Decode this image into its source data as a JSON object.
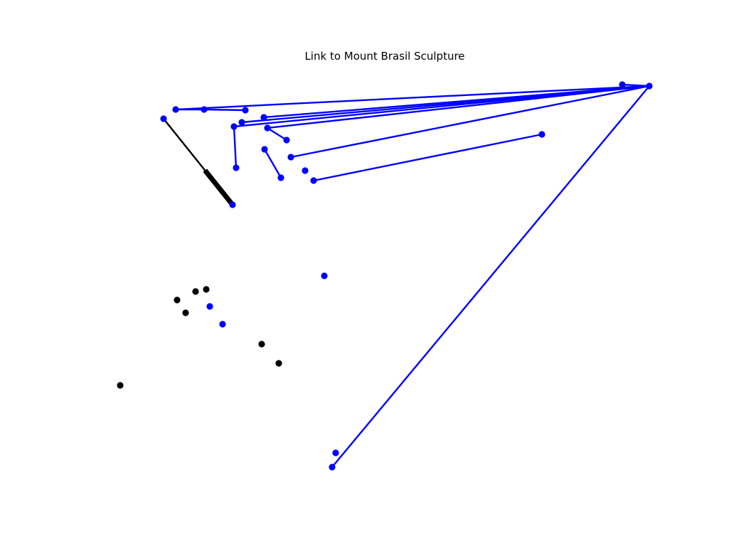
{
  "title": "Link to Mount Brasil Sculpture",
  "colors": {
    "primary": "#0000ff",
    "secondary": "#000000",
    "background": "#ffffff"
  },
  "nodes": [
    {
      "id": "n1",
      "group": "blue"
    },
    {
      "id": "n2",
      "group": "blue"
    },
    {
      "id": "n3",
      "group": "blue"
    },
    {
      "id": "n4",
      "group": "blue"
    },
    {
      "id": "n5",
      "group": "blue"
    },
    {
      "id": "n6",
      "group": "blue"
    },
    {
      "id": "n7",
      "group": "blue"
    },
    {
      "id": "n8",
      "group": "blue"
    },
    {
      "id": "n9",
      "group": "blue"
    },
    {
      "id": "n10",
      "group": "blue"
    },
    {
      "id": "n11",
      "group": "blue"
    },
    {
      "id": "n12",
      "group": "blue"
    },
    {
      "id": "n13",
      "group": "blue"
    },
    {
      "id": "n14",
      "group": "blue"
    },
    {
      "id": "n15",
      "group": "blue"
    },
    {
      "id": "n16",
      "group": "blue"
    },
    {
      "id": "n17",
      "group": "blue"
    },
    {
      "id": "n18",
      "group": "blue"
    },
    {
      "id": "n19",
      "group": "blue"
    },
    {
      "id": "n20",
      "group": "blue"
    },
    {
      "id": "n21",
      "group": "blue"
    },
    {
      "id": "n22",
      "group": "blue"
    },
    {
      "id": "n23",
      "group": "blue"
    },
    {
      "id": "n24",
      "group": "blue"
    },
    {
      "id": "n25",
      "group": "black"
    },
    {
      "id": "n26",
      "group": "black"
    },
    {
      "id": "n27",
      "group": "black"
    },
    {
      "id": "n28",
      "group": "black"
    },
    {
      "id": "n29",
      "group": "black"
    },
    {
      "id": "n30",
      "group": "black"
    },
    {
      "id": "n31",
      "group": "black"
    }
  ],
  "edges": [
    {
      "from": "n2",
      "to": "n3",
      "color": "blue"
    },
    {
      "from": "n3",
      "to": "n4",
      "color": "blue"
    },
    {
      "from": "n2",
      "to": "n20",
      "color": "blue"
    },
    {
      "from": "n5",
      "to": "n20",
      "color": "blue"
    },
    {
      "from": "n6",
      "to": "n20",
      "color": "blue"
    },
    {
      "from": "n7",
      "to": "n20",
      "color": "blue"
    },
    {
      "from": "n8",
      "to": "n20",
      "color": "blue"
    },
    {
      "from": "n14",
      "to": "n20",
      "color": "blue"
    },
    {
      "from": "n7",
      "to": "n11",
      "color": "blue"
    },
    {
      "from": "n8",
      "to": "n9",
      "color": "blue"
    },
    {
      "from": "n10",
      "to": "n12",
      "color": "blue"
    },
    {
      "from": "n15",
      "to": "n21",
      "color": "blue"
    },
    {
      "from": "n19",
      "to": "n20",
      "color": "blue"
    },
    {
      "from": "n20",
      "to": "n24",
      "color": "blue"
    },
    {
      "from": "n1",
      "to": "n16",
      "color": "black"
    }
  ],
  "arrows": [
    {
      "from": "n1",
      "to": "n16",
      "color": "black"
    }
  ]
}
